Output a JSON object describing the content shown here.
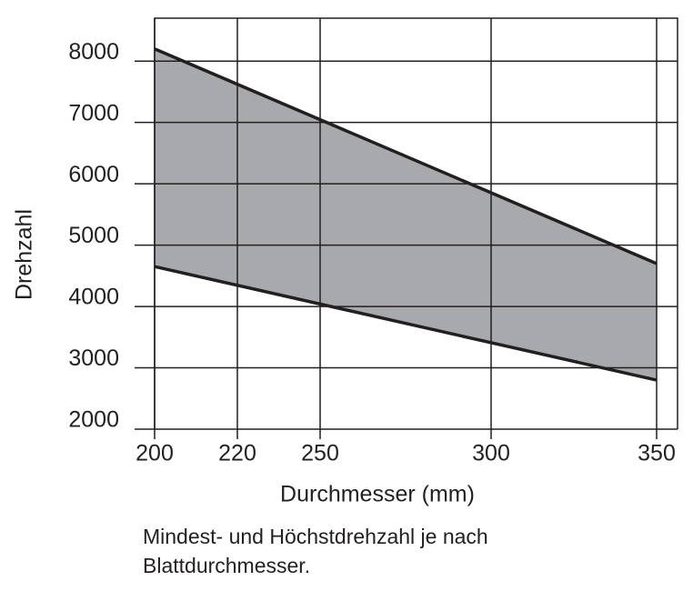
{
  "chart_data": {
    "type": "band",
    "x_label": "Durchmesser (mm)",
    "y_label": "Drehzahl",
    "caption": "Mindest- und Höchstdrehzahl je nach Blattdurchmesser.",
    "x": [
      200,
      350
    ],
    "series": [
      {
        "color": "#231f20",
        "values": [
          8200,
          4700
        ]
      },
      {
        "color": "#231f20",
        "values": [
          4650,
          2800
        ]
      }
    ],
    "fill_color": "#a7a9ac",
    "xlim": [
      200,
      356
    ],
    "xticks": [
      200,
      220,
      250,
      300,
      350
    ],
    "ylim": [
      2000,
      8700
    ],
    "yticks": [
      2000,
      3000,
      4000,
      5000,
      6000,
      7000,
      8000
    ],
    "grid": true
  }
}
